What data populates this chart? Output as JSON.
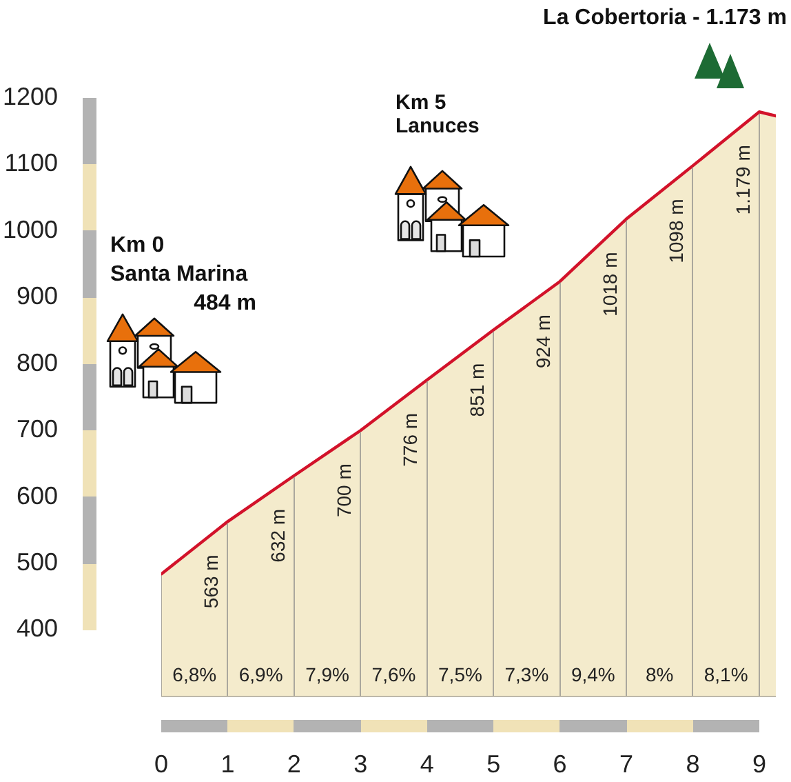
{
  "chart_data": {
    "type": "area",
    "title": "La Cobertoria - 1.173 m",
    "x": [
      0,
      1,
      2,
      3,
      4,
      5,
      6,
      7,
      8,
      9,
      9.25
    ],
    "series": [
      {
        "color": "#d2122a",
        "values": [
          484,
          563,
          632,
          700,
          776,
          851,
          924,
          1018,
          1098,
          1179,
          1173
        ],
        "value_labels": [
          null,
          "563 m",
          "632 m",
          "700 m",
          "776 m",
          "851 m",
          "924 m",
          "1018 m",
          "1098 m",
          "1.179 m",
          null
        ]
      }
    ],
    "xlim": [
      0,
      9.25
    ],
    "xticks": [
      0,
      1,
      2,
      3,
      4,
      5,
      6,
      7,
      8,
      9
    ],
    "ylim": [
      300,
      1200
    ],
    "yticks": [
      400,
      500,
      600,
      700,
      800,
      900,
      1000,
      1100,
      1200
    ],
    "grid": "x",
    "annotations": [
      "Km 0\nSanta Marina\n484 m",
      "Km 5\nLanuces",
      "6,8%",
      "6,9%",
      "7,9%",
      "7,6%",
      "7,5%",
      "7,3%",
      "9,4%",
      "8%",
      "8,1%"
    ]
  }
}
